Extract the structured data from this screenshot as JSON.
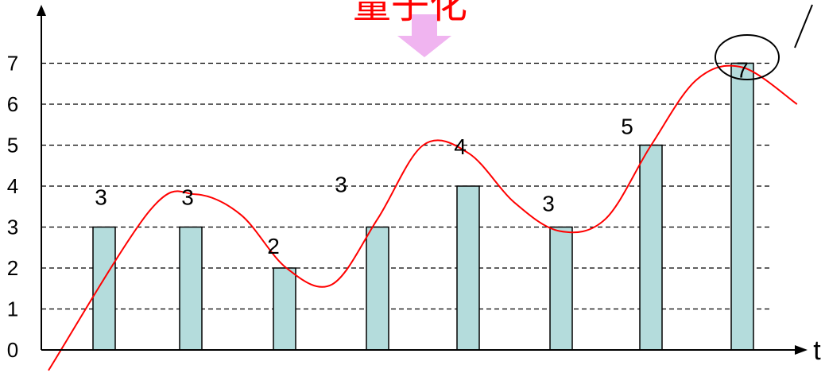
{
  "chart_data": {
    "type": "bar",
    "title": "量子化",
    "xlabel": "t",
    "ylabel": "",
    "ylim": [
      0,
      7.5
    ],
    "y_ticks": [
      "0",
      "1",
      "2",
      "3",
      "4",
      "5",
      "6",
      "7"
    ],
    "grid": "horizontal dashed",
    "categories": [
      "",
      "",
      "",
      "",
      "",
      "",
      "",
      ""
    ],
    "values": [
      3,
      3,
      2,
      3,
      4,
      3,
      5,
      7
    ],
    "data_labels": [
      "3",
      "3",
      "2",
      "3",
      "4",
      "3",
      "5",
      "7"
    ],
    "curve": {
      "x": [
        0.0,
        0.5,
        1.0,
        1.5,
        2.0,
        2.5,
        3.0,
        3.5,
        4.0,
        4.5,
        5.0,
        5.5,
        6.0,
        6.5,
        7.0,
        7.6
      ],
      "y": [
        -0.5,
        3.4,
        3.8,
        3.3,
        2.0,
        1.6,
        3.2,
        5.0,
        4.8,
        3.6,
        2.9,
        3.2,
        5.0,
        6.6,
        6.9,
        6.0
      ]
    },
    "colors": {
      "bar_fill": "#b4dcdc",
      "bar_stroke": "#000000",
      "curve": "#ff0000",
      "title": "#ff0000",
      "arrow": "#f0b4f0"
    }
  }
}
